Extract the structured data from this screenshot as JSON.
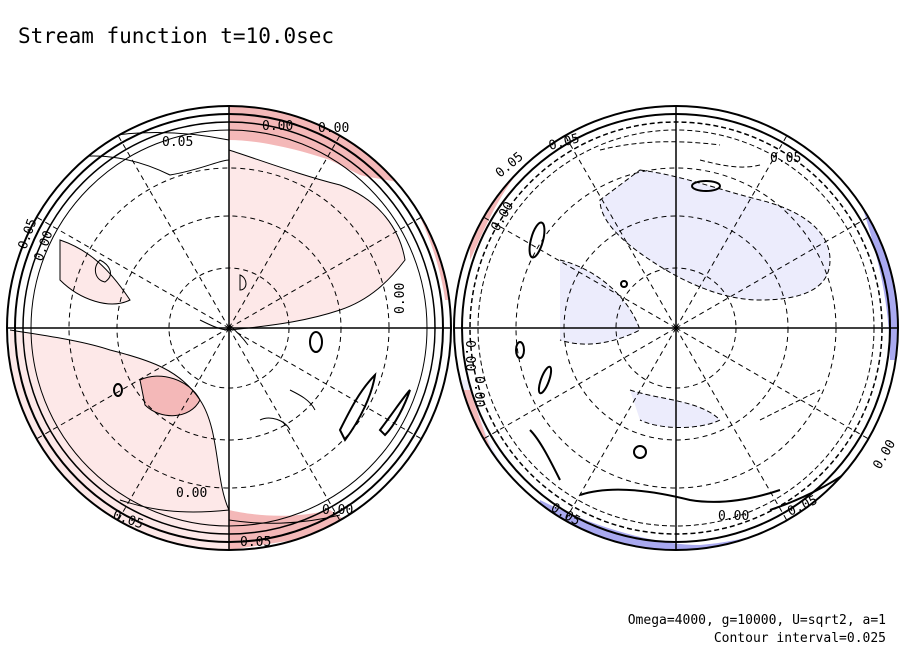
{
  "title": "Stream function t=10.0sec",
  "params": {
    "line1": "Omega=4000, g=10000, U=sqrt2, a=1",
    "line2": "Contour interval=0.025"
  },
  "colors": {
    "positive_light": "#fde8e8",
    "positive_mid": "#f4b8b8",
    "negative_light": "#ececfc",
    "negative_mid": "#a9a9f0",
    "line": "#000000"
  },
  "left_hemisphere": {
    "labels": [
      "0.05",
      "0.00",
      "0.00",
      "0.00",
      "0.00",
      "0.00",
      "0.05",
      "0.05",
      "0.05",
      "0.00"
    ]
  },
  "right_hemisphere": {
    "labels": [
      "0.05",
      "0.00",
      "0.05",
      "0.00",
      "0.05",
      "0.00",
      "0.05",
      "0.05",
      "0.00",
      "0.00"
    ]
  }
}
